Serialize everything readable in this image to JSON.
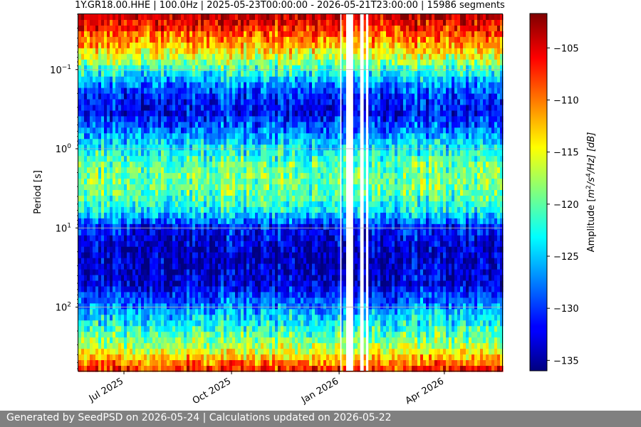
{
  "chart_data": {
    "type": "heatmap",
    "title": "1Y.GR18.00.HHE | 100.0Hz | 2025-05-23T00:00:00 - 2026-05-21T23:00:00 | 15986 segments",
    "xlabel": "",
    "ylabel": "Period [s]",
    "x_range": [
      "2025-05-23",
      "2026-05-21"
    ],
    "x_ticks": [
      {
        "date": "2025-07-01",
        "label": "Jul 2025"
      },
      {
        "date": "2025-10-01",
        "label": "Oct 2025"
      },
      {
        "date": "2026-01-01",
        "label": "Jan 2026"
      },
      {
        "date": "2026-04-01",
        "label": "Apr 2026"
      }
    ],
    "y_scale": "log",
    "y_inverted": true,
    "y_range": [
      0.02,
      650
    ],
    "y_ticks": [
      {
        "value": 0.1,
        "base": "10",
        "exp": "−1"
      },
      {
        "value": 1,
        "base": "10",
        "exp": "0"
      },
      {
        "value": 10,
        "base": "10",
        "exp": "1"
      },
      {
        "value": 100,
        "base": "10",
        "exp": "2"
      }
    ],
    "grid": true,
    "data_gaps": [
      [
        "2026-01-02",
        "2026-01-03"
      ],
      [
        "2026-01-07",
        "2026-01-13"
      ],
      [
        "2026-01-19",
        "2026-01-22"
      ],
      [
        "2026-01-24",
        "2026-01-26"
      ]
    ],
    "colorbar": {
      "label_prefix": "Amplitude [",
      "label_math": "m",
      "label_sup1": "2",
      "label_mid": "/s",
      "label_sup2": "4",
      "label_end": "/Hz] [dB]",
      "cmap": "jet",
      "range": [
        -136.0,
        -101.7
      ],
      "ticks": [
        -105,
        -110,
        -115,
        -120,
        -125,
        -130,
        -135
      ],
      "tick_labels": [
        "−105",
        "−110",
        "−115",
        "−120",
        "−125",
        "−130",
        "−135"
      ]
    },
    "amplitude_profile": [
      {
        "period": 0.02,
        "db": -103
      },
      {
        "period": 0.03,
        "db": -107
      },
      {
        "period": 0.05,
        "db": -112
      },
      {
        "period": 0.08,
        "db": -118
      },
      {
        "period": 0.12,
        "db": -124
      },
      {
        "period": 0.2,
        "db": -130
      },
      {
        "period": 0.35,
        "db": -132
      },
      {
        "period": 0.7,
        "db": -126
      },
      {
        "period": 1.5,
        "db": -120
      },
      {
        "period": 3,
        "db": -119
      },
      {
        "period": 6,
        "db": -123
      },
      {
        "period": 10,
        "db": -131
      },
      {
        "period": 20,
        "db": -134
      },
      {
        "period": 50,
        "db": -133
      },
      {
        "period": 100,
        "db": -127
      },
      {
        "period": 200,
        "db": -121
      },
      {
        "period": 350,
        "db": -116
      },
      {
        "period": 650,
        "db": -106
      }
    ]
  },
  "footer": {
    "text": "Generated by SeedPSD on 2026-05-24 | Calculations updated on 2026-05-22"
  }
}
